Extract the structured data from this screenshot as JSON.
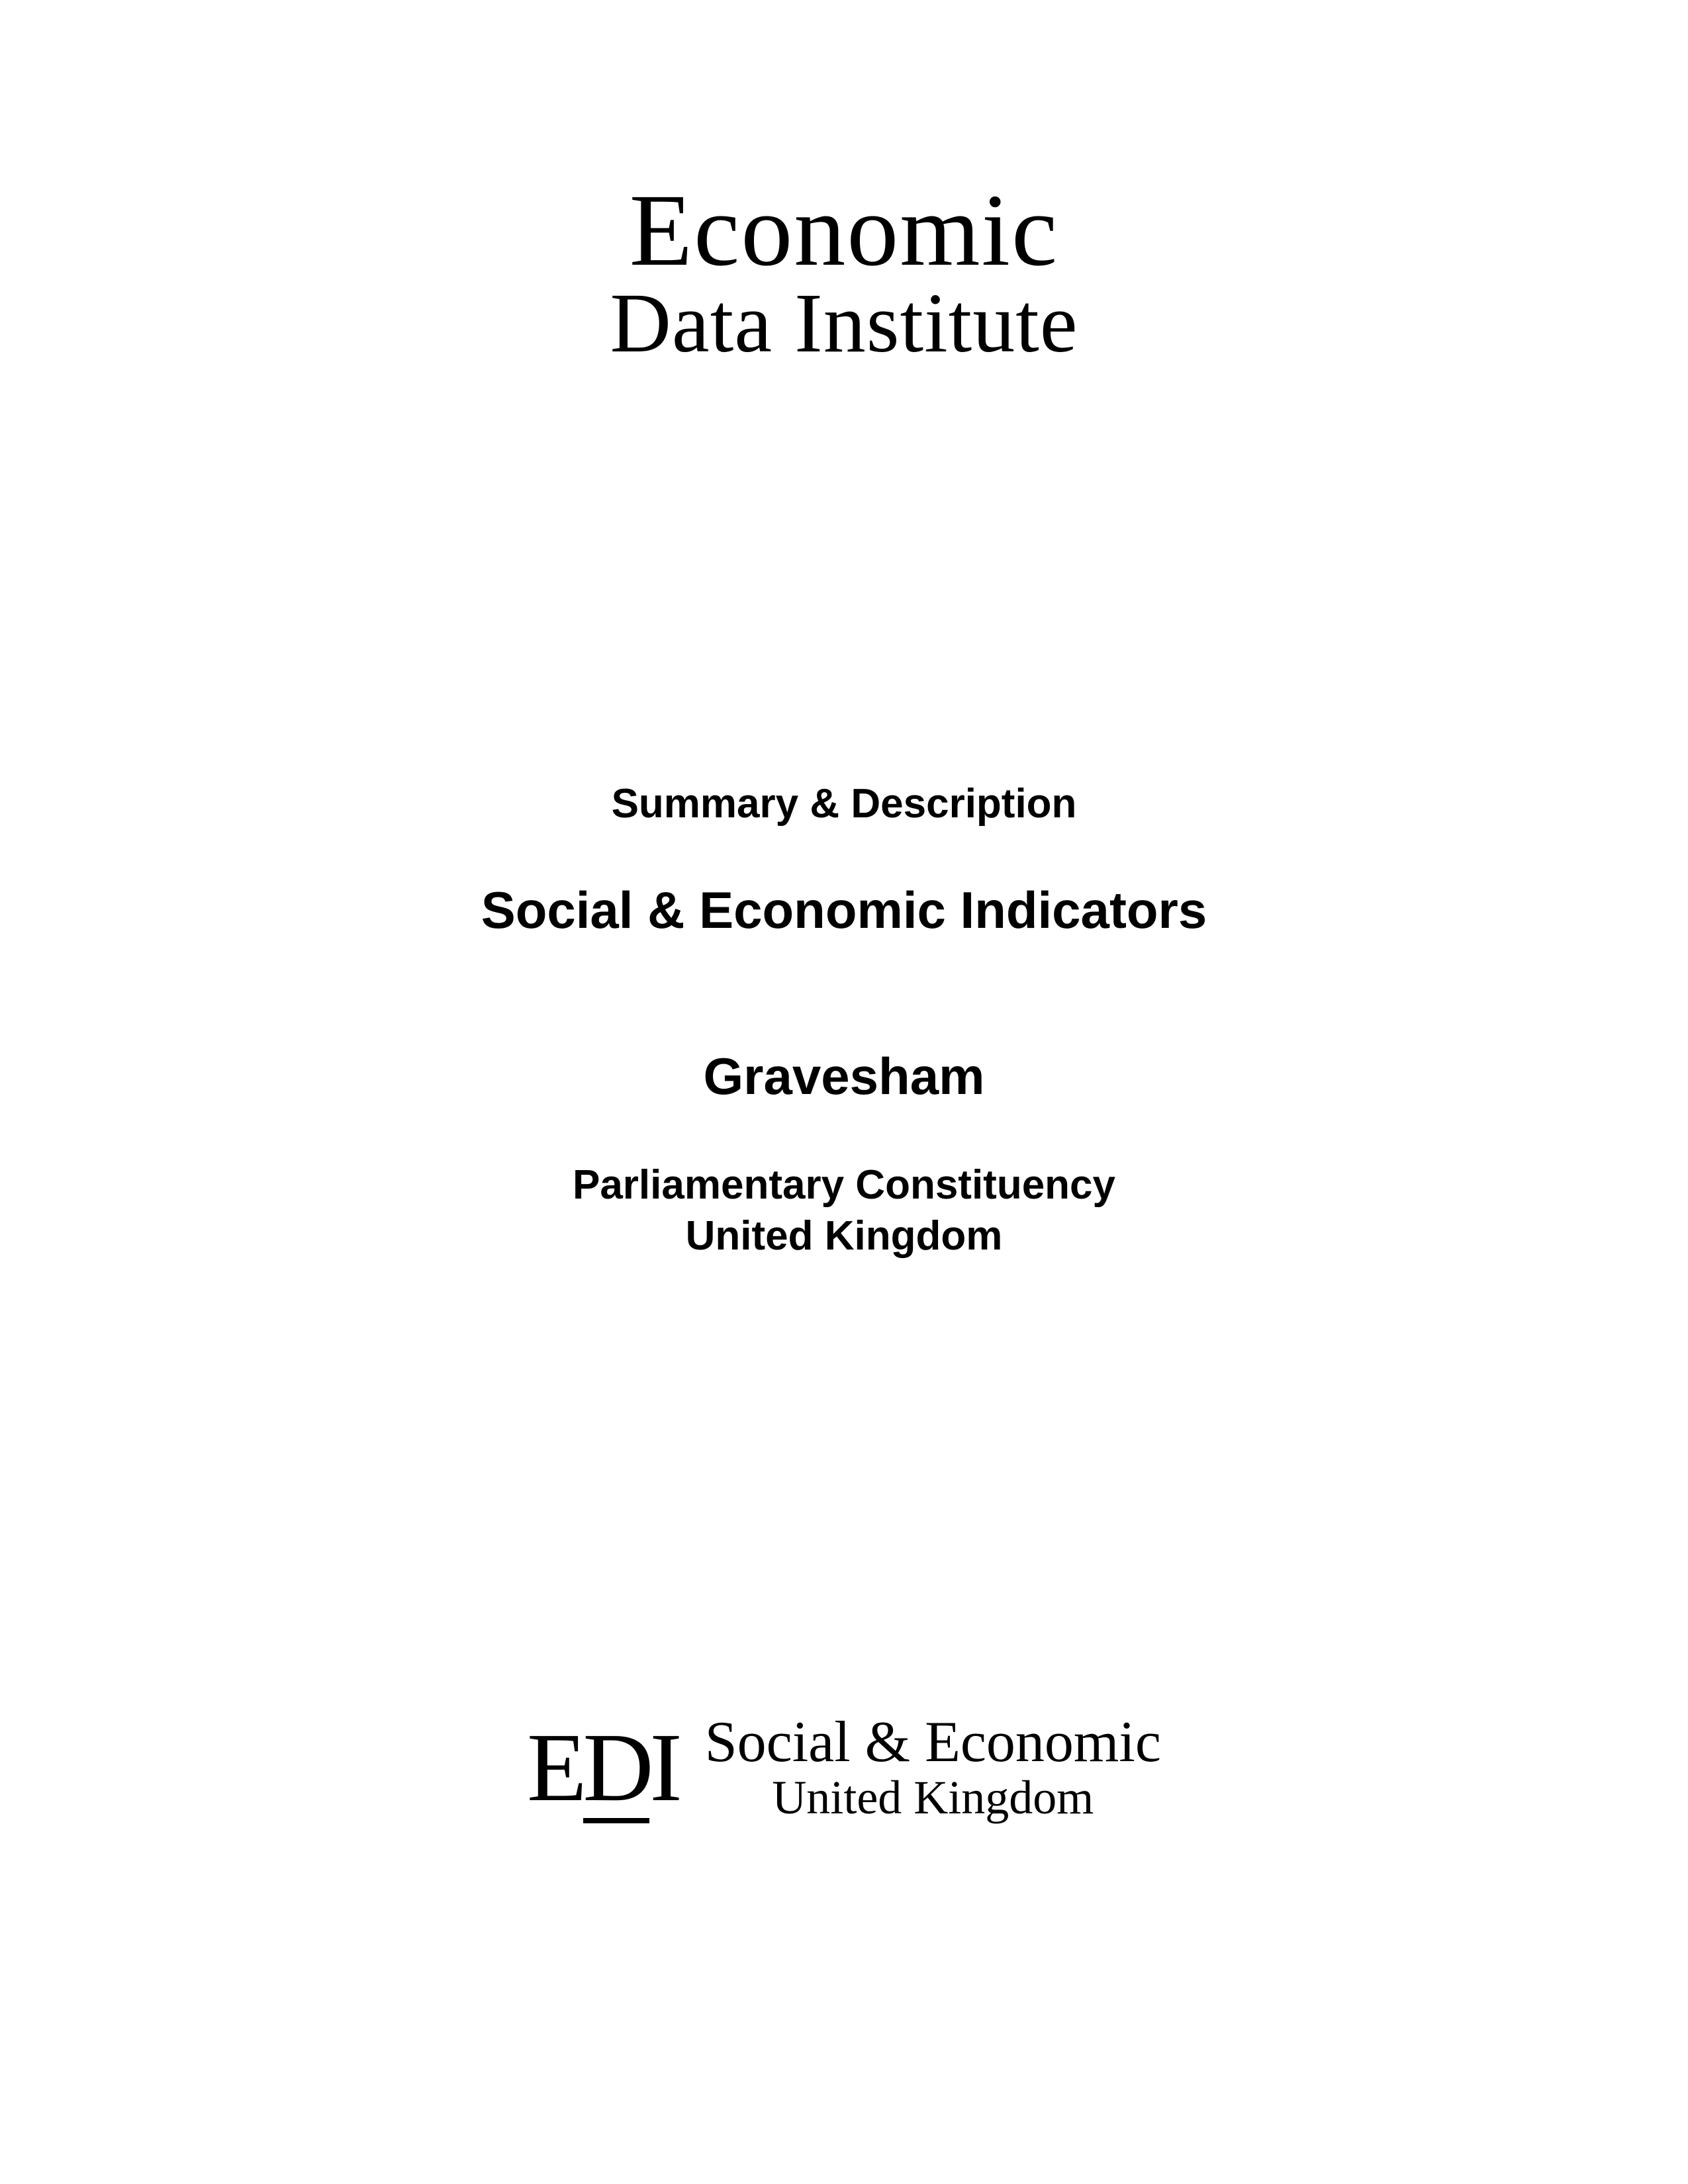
{
  "mainLogo": {
    "line1": "Economic",
    "line2": "Data Institute"
  },
  "content": {
    "summary": "Summary & Description",
    "title": "Social & Economic Indicators",
    "location": "Gravesham",
    "subtitle1": "Parliamentary Constituency",
    "subtitle2": "United Kingdom"
  },
  "footerLogo": {
    "mark": "EDI",
    "line1": "Social & Economic",
    "line2": "United Kingdom"
  },
  "colors": {
    "background": "#ffffff",
    "text": "#000000"
  }
}
